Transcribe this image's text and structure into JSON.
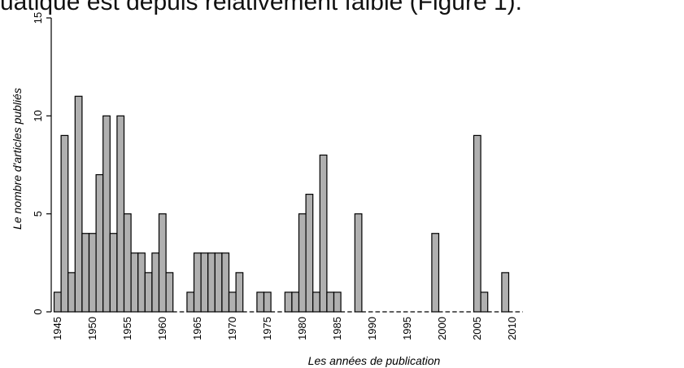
{
  "top_text": "uatique est depuis relativement faible (Figure 1).",
  "chart_data": {
    "type": "bar",
    "title": "",
    "xlabel": "Les années de publication",
    "ylabel": "Le nombre d'articles publiés",
    "ylim": [
      0,
      15
    ],
    "y_ticks": [
      "0",
      "5",
      "10",
      "15"
    ],
    "x_tick_labels": [
      "1945",
      "1950",
      "1955",
      "1960",
      "1965",
      "1970",
      "1975",
      "1980",
      "1985",
      "1990",
      "1995",
      "2000",
      "2005",
      "2010"
    ],
    "x_range": [
      1945,
      2011
    ],
    "zero_values_drawn_as": "dashed baseline",
    "bar_color": "#b0b0b0",
    "x": [
      1945,
      1946,
      1947,
      1948,
      1949,
      1950,
      1951,
      1952,
      1953,
      1954,
      1955,
      1956,
      1957,
      1958,
      1959,
      1960,
      1961,
      1962,
      1963,
      1964,
      1965,
      1966,
      1967,
      1968,
      1969,
      1970,
      1971,
      1972,
      1973,
      1974,
      1975,
      1976,
      1977,
      1978,
      1979,
      1980,
      1981,
      1982,
      1983,
      1984,
      1985,
      1986,
      1987,
      1988,
      1989,
      1990,
      1991,
      1992,
      1993,
      1994,
      1995,
      1996,
      1997,
      1998,
      1999,
      2000,
      2001,
      2002,
      2003,
      2004,
      2005,
      2006,
      2007,
      2008,
      2009,
      2010,
      2011
    ],
    "values": [
      1,
      9,
      2,
      11,
      4,
      4,
      7,
      10,
      4,
      10,
      5,
      3,
      3,
      2,
      3,
      5,
      2,
      0,
      0,
      1,
      3,
      3,
      3,
      3,
      3,
      1,
      2,
      0,
      0,
      1,
      1,
      0,
      0,
      1,
      1,
      5,
      6,
      1,
      8,
      1,
      1,
      0,
      0,
      5,
      0,
      0,
      0,
      0,
      0,
      0,
      0,
      0,
      0,
      0,
      4,
      0,
      0,
      0,
      0,
      0,
      9,
      1,
      0,
      0,
      2,
      0,
      0
    ]
  }
}
